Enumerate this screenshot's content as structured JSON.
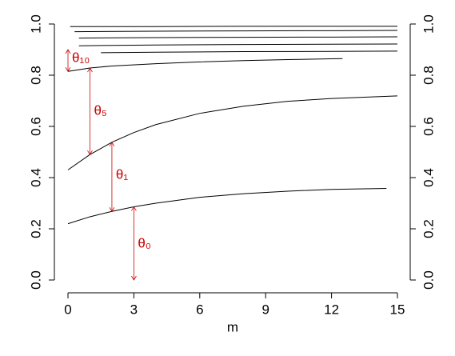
{
  "chart_data": {
    "type": "line",
    "xlabel": "m",
    "xlim": [
      0,
      15
    ],
    "xticks": [
      0,
      3,
      6,
      9,
      12,
      15
    ],
    "ylim": [
      0,
      1
    ],
    "yticks": [
      {
        "value": 0,
        "label": "0.0"
      },
      {
        "value": 0.2,
        "label": "0.2"
      },
      {
        "value": 0.4,
        "label": "0.4"
      },
      {
        "value": 0.6,
        "label": "0.6"
      },
      {
        "value": 0.8,
        "label": "0.8"
      },
      {
        "value": 1,
        "label": "1.0"
      }
    ],
    "series": [
      {
        "color": "#000000",
        "x": [
          0,
          1,
          2,
          3,
          4,
          6,
          8,
          10,
          12,
          14.5
        ],
        "values": [
          0.22,
          0.247,
          0.268,
          0.286,
          0.3,
          0.323,
          0.337,
          0.347,
          0.354,
          0.358
        ]
      },
      {
        "color": "#000000",
        "x": [
          0,
          1,
          2,
          3,
          4,
          6,
          8,
          10,
          12,
          15
        ],
        "values": [
          0.43,
          0.49,
          0.538,
          0.576,
          0.607,
          0.651,
          0.679,
          0.698,
          0.709,
          0.719
        ]
      },
      {
        "color": "#000000",
        "x": [
          0,
          1,
          2,
          4,
          6,
          8,
          10,
          12.5
        ],
        "values": [
          0.815,
          0.828,
          0.836,
          0.845,
          0.852,
          0.857,
          0.861,
          0.865
        ]
      },
      {
        "color": "#000000",
        "x": [
          1.5,
          4,
          8,
          12,
          15
        ],
        "values": [
          0.888,
          0.89,
          0.892,
          0.893,
          0.894
        ]
      },
      {
        "color": "#000000",
        "x": [
          0.5,
          4,
          8,
          12,
          15
        ],
        "values": [
          0.915,
          0.918,
          0.92,
          0.921,
          0.922
        ]
      },
      {
        "color": "#000000",
        "x": [
          0.5,
          4,
          8,
          12,
          15
        ],
        "values": [
          0.945,
          0.947,
          0.948,
          0.949,
          0.95
        ]
      },
      {
        "color": "#000000",
        "x": [
          0.3,
          4,
          8,
          12,
          15
        ],
        "values": [
          0.97,
          0.972,
          0.973,
          0.974,
          0.975
        ]
      },
      {
        "color": "#000000",
        "x": [
          0.1,
          4,
          8,
          12,
          15
        ],
        "values": [
          0.99,
          0.99,
          0.991,
          0.991,
          0.991
        ]
      }
    ],
    "annotations": [
      {
        "text": "θ₀",
        "color": "#cc0000",
        "x": 3,
        "y_from": 0,
        "y_to": 0.286,
        "label_y": 0.14
      },
      {
        "text": "θ₁",
        "color": "#cc0000",
        "x": 2,
        "y_from": 0.268,
        "y_to": 0.538,
        "label_y": 0.41
      },
      {
        "text": "θ₅",
        "color": "#cc0000",
        "x": 1,
        "y_from": 0.49,
        "y_to": 0.828,
        "label_y": 0.66
      },
      {
        "text": "θ₁₀",
        "color": "#cc0000",
        "x": 0,
        "y_from": 0.815,
        "y_to": 0.9,
        "label_y": 0.865
      }
    ]
  }
}
